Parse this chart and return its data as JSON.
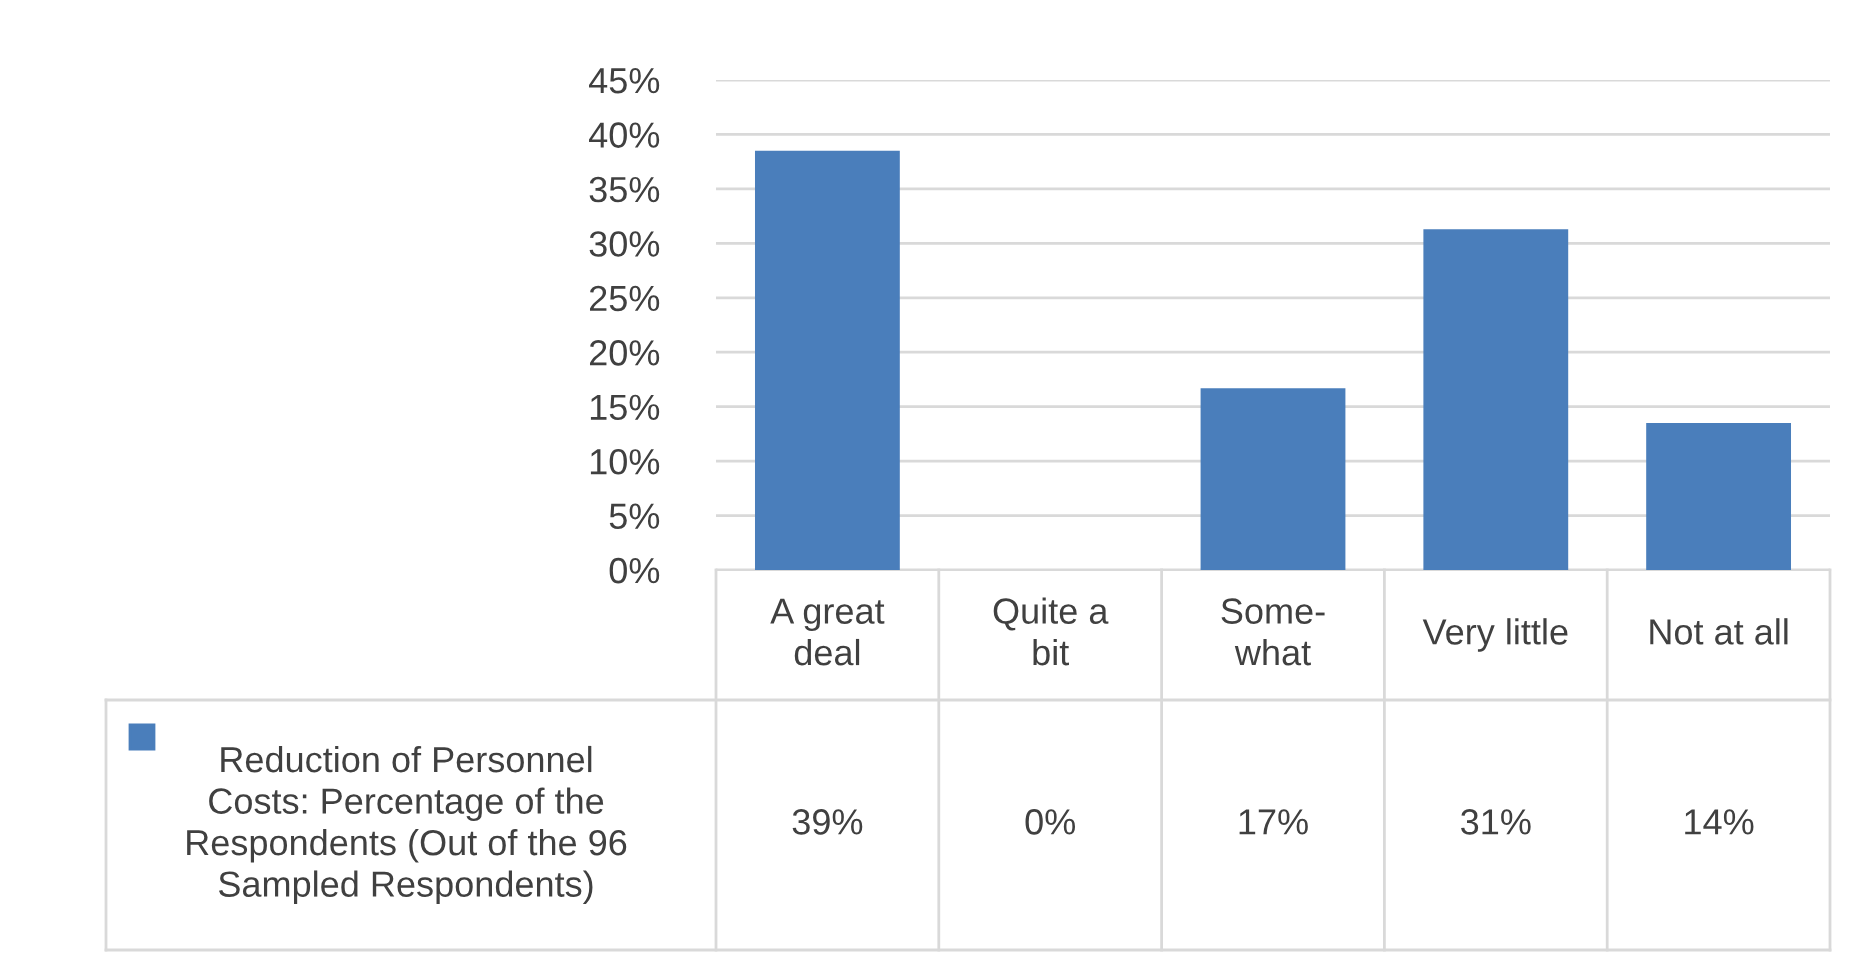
{
  "chart_data": {
    "type": "bar",
    "categories": [
      "A great\ndeal",
      "Quite a\nbit",
      "Some-\nwhat",
      "Very little",
      "Not at all"
    ],
    "series": [
      {
        "name": "Reduction of Personnel\nCosts: Percentage of the\nRespondents (Out of the 96\nSampled Respondents)",
        "color": "#4a7ebb",
        "values": [
          38.5,
          0,
          16.7,
          31.3,
          13.5
        ],
        "value_labels": [
          "39%",
          "0%",
          "17%",
          "31%",
          "14%"
        ]
      }
    ],
    "ylim": [
      0,
      45
    ],
    "yticks": [
      {
        "value": 0,
        "label": "0%"
      },
      {
        "value": 5,
        "label": "5%"
      },
      {
        "value": 10,
        "label": "10%"
      },
      {
        "value": 15,
        "label": "15%"
      },
      {
        "value": 20,
        "label": "20%"
      },
      {
        "value": 25,
        "label": "25%"
      },
      {
        "value": 30,
        "label": "30%"
      },
      {
        "value": 35,
        "label": "35%"
      },
      {
        "value": 40,
        "label": "40%"
      },
      {
        "value": 45,
        "label": "45%"
      }
    ],
    "grid": "y",
    "legend": "bottom left"
  }
}
